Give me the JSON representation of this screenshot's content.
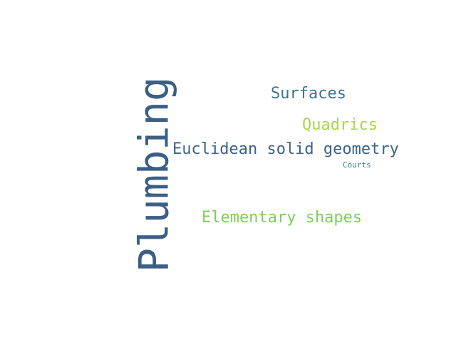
{
  "word_cloud": {
    "words": [
      {
        "id": "plumbing",
        "text": "Plumbing",
        "orientation": "vertical",
        "color": "#3b5f86"
      },
      {
        "id": "surfaces",
        "text": "Surfaces",
        "orientation": "horizontal",
        "color": "#3a7592"
      },
      {
        "id": "quadrics",
        "text": "Quadrics",
        "orientation": "horizontal",
        "color": "#a9d646"
      },
      {
        "id": "euclid",
        "text": "Euclidean solid geometry",
        "orientation": "horizontal",
        "color": "#3c6287"
      },
      {
        "id": "courts",
        "text": "Courts",
        "orientation": "horizontal",
        "color": "#3a8090"
      },
      {
        "id": "elementary",
        "text": "Elementary shapes",
        "orientation": "horizontal",
        "color": "#7ccf5a"
      }
    ]
  }
}
